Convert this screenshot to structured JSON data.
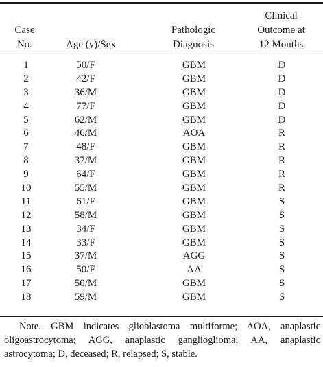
{
  "header": {
    "case_line1": "Case",
    "case_line2": "No.",
    "age_sex": "Age (y)/Sex",
    "path_line1": "Pathologic",
    "path_line2": "Diagnosis",
    "clin_line1": "Clinical",
    "clin_line2": "Outcome at",
    "clin_line3": "12 Months"
  },
  "rows": [
    {
      "case": "1",
      "age_sex": "50/F",
      "diagnosis": "GBM",
      "outcome": "D"
    },
    {
      "case": "2",
      "age_sex": "42/F",
      "diagnosis": "GBM",
      "outcome": "D"
    },
    {
      "case": "3",
      "age_sex": "36/M",
      "diagnosis": "GBM",
      "outcome": "D"
    },
    {
      "case": "4",
      "age_sex": "77/F",
      "diagnosis": "GBM",
      "outcome": "D"
    },
    {
      "case": "5",
      "age_sex": "62/M",
      "diagnosis": "GBM",
      "outcome": "D"
    },
    {
      "case": "6",
      "age_sex": "46/M",
      "diagnosis": "AOA",
      "outcome": "R"
    },
    {
      "case": "7",
      "age_sex": "48/F",
      "diagnosis": "GBM",
      "outcome": "R"
    },
    {
      "case": "8",
      "age_sex": "37/M",
      "diagnosis": "GBM",
      "outcome": "R"
    },
    {
      "case": "9",
      "age_sex": "64/F",
      "diagnosis": "GBM",
      "outcome": "R"
    },
    {
      "case": "10",
      "age_sex": "55/M",
      "diagnosis": "GBM",
      "outcome": "R"
    },
    {
      "case": "11",
      "age_sex": "61/F",
      "diagnosis": "GBM",
      "outcome": "S"
    },
    {
      "case": "12",
      "age_sex": "58/M",
      "diagnosis": "GBM",
      "outcome": "S"
    },
    {
      "case": "13",
      "age_sex": "34/F",
      "diagnosis": "GBM",
      "outcome": "S"
    },
    {
      "case": "14",
      "age_sex": "33/F",
      "diagnosis": "GBM",
      "outcome": "S"
    },
    {
      "case": "15",
      "age_sex": "37/M",
      "diagnosis": "AGG",
      "outcome": "S"
    },
    {
      "case": "16",
      "age_sex": "50/F",
      "diagnosis": "AA",
      "outcome": "S"
    },
    {
      "case": "17",
      "age_sex": "50/M",
      "diagnosis": "GBM",
      "outcome": "S"
    },
    {
      "case": "18",
      "age_sex": "59/M",
      "diagnosis": "GBM",
      "outcome": "S"
    }
  ],
  "note": "Note.—GBM indicates glioblastoma multiforme; AOA, anaplastic oligoastrocytoma; AGG, anaplastic ganglioglioma; AA, anaplastic astrocytoma; D, deceased; R, relapsed; S, stable."
}
